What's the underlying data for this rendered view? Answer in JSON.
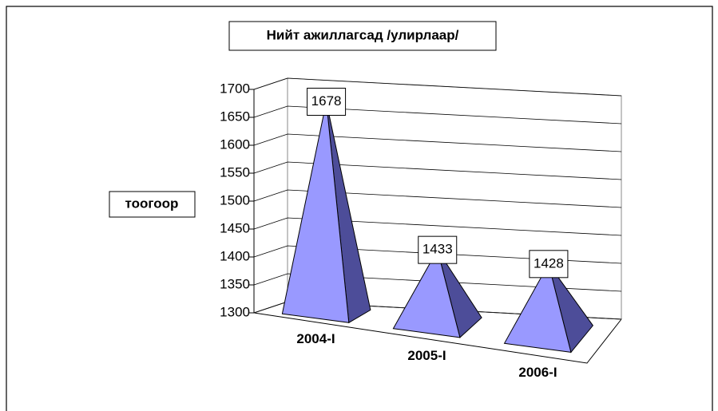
{
  "chart_data": {
    "type": "pyramid3d",
    "title": "Нийт ажиллагсад /улирлаар/",
    "y_label": "тоогоор",
    "categories": [
      "2004-I",
      "2005-I",
      "2006-I"
    ],
    "values": [
      1678,
      1433,
      1428
    ],
    "color": "#9999ff",
    "ylim": [
      1300,
      1700
    ],
    "yticks": [
      1300,
      1350,
      1400,
      1450,
      1500,
      1550,
      1600,
      1650,
      1700
    ],
    "grid": true
  }
}
